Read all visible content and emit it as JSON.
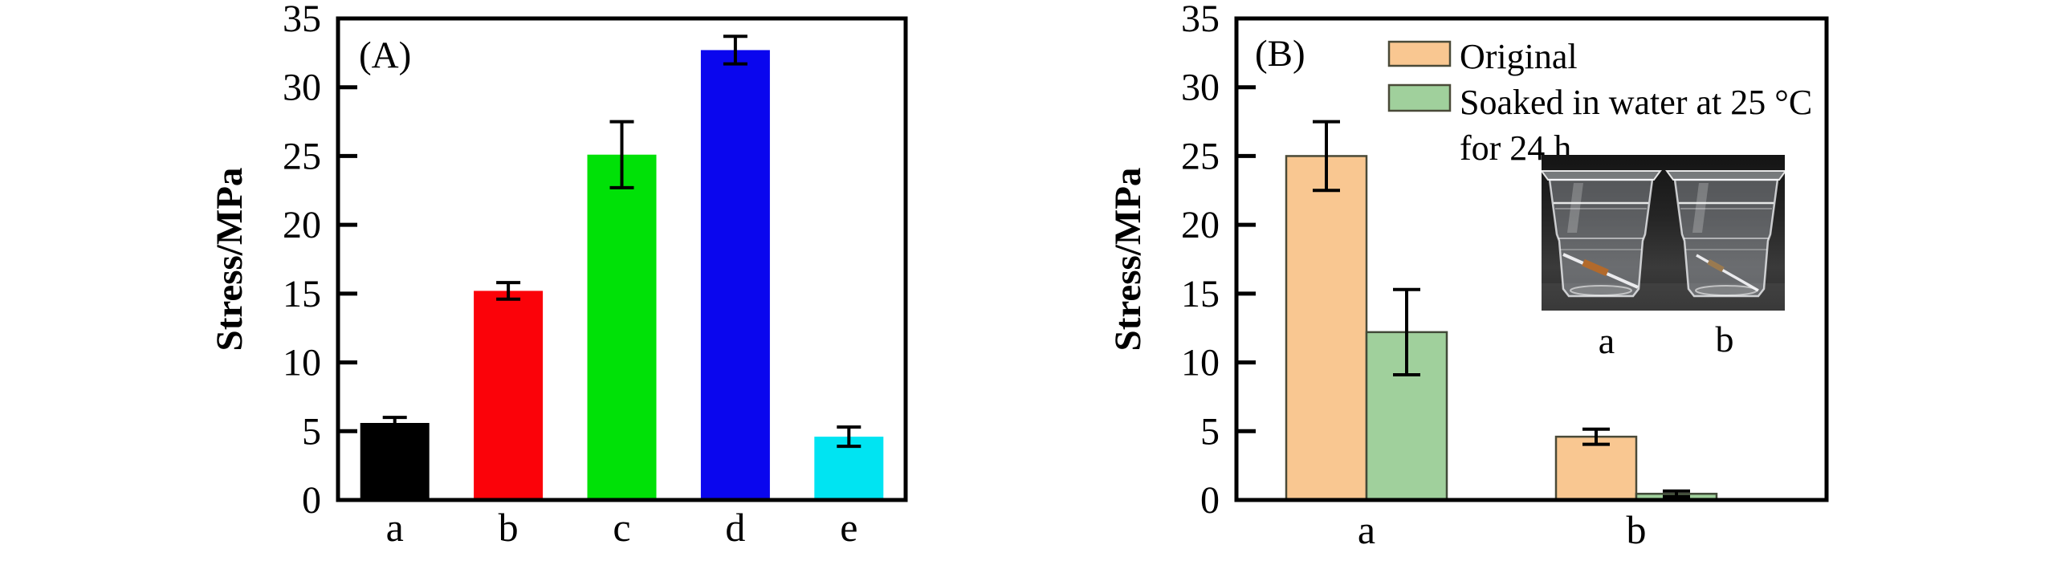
{
  "figure": {
    "background": "#ffffff",
    "panel_labels": [
      "(A)",
      "(B)"
    ]
  },
  "chart_data": [
    {
      "type": "bar",
      "panel_label": "(A)",
      "ylabel": "Stress/MPa",
      "xlabel": "",
      "ylim": [
        0,
        35
      ],
      "yticks": [
        0,
        5,
        10,
        15,
        20,
        25,
        30,
        35
      ],
      "grid": false,
      "legend": null,
      "categories": [
        "a",
        "b",
        "c",
        "d",
        "e"
      ],
      "values": [
        5.6,
        15.2,
        25.1,
        32.7,
        4.6
      ],
      "errors": [
        0.4,
        0.6,
        2.4,
        1.0,
        0.7
      ],
      "bar_colors": [
        "#000000",
        "#fb0209",
        "#00e107",
        "#0a06ee",
        "#00e4f2"
      ]
    },
    {
      "type": "bar",
      "panel_label": "(B)",
      "ylabel": "Stress/MPa",
      "xlabel": "",
      "ylim": [
        0,
        35
      ],
      "yticks": [
        0,
        5,
        10,
        15,
        20,
        25,
        30,
        35
      ],
      "grid": false,
      "categories": [
        "a",
        "b"
      ],
      "series": [
        {
          "name": "Original",
          "color": "#f9c791",
          "edge_color": "#4a4a38",
          "values": [
            25.0,
            4.6
          ],
          "errors": [
            2.5,
            0.55
          ]
        },
        {
          "name": "Soaked in water at 25 °C for 24 h",
          "color": "#a0d09c",
          "edge_color": "#414a38",
          "values": [
            12.2,
            0.45
          ],
          "errors": [
            3.1,
            0.2
          ]
        }
      ],
      "legend": {
        "position": "top-inside",
        "entries": [
          {
            "label_lines": [
              "Original"
            ],
            "color": "#f9c791"
          },
          {
            "label_lines": [
              "Soaked in water at 25 °C",
              "for 24 h"
            ],
            "color": "#a0d09c"
          }
        ]
      },
      "inset_photo": {
        "description": "two transparent plastic cups filled with water, each with a soaking sample strip, on a dark background",
        "cup_labels": [
          "a",
          "b"
        ]
      }
    }
  ]
}
